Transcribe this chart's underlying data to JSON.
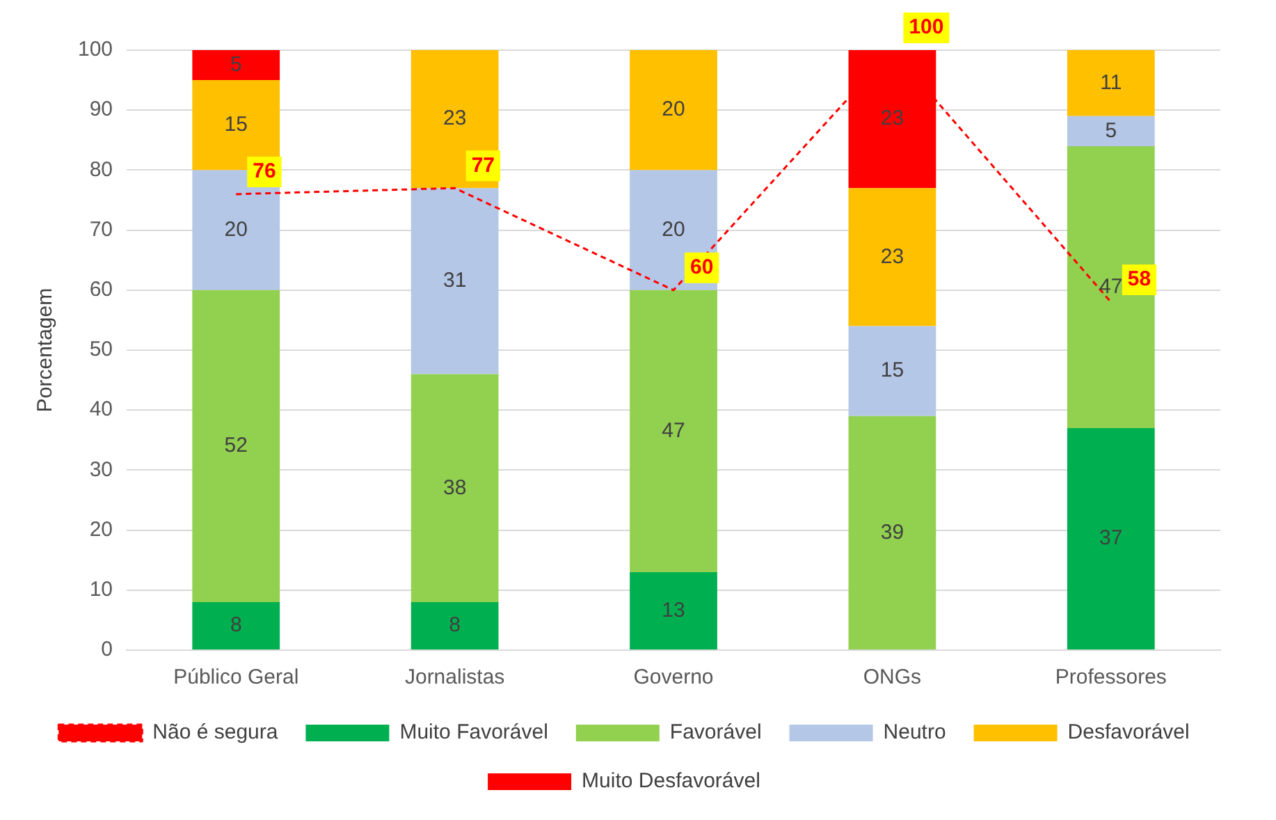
{
  "chart_data": {
    "type": "bar",
    "stacked": true,
    "ylabel": "Porcentagem",
    "categories": [
      "Público Geral",
      "Jornalistas",
      "Governo",
      "ONGs",
      "Professores"
    ],
    "series": [
      {
        "name": "Muito Favorável",
        "color": "#00b050",
        "values": [
          8,
          8,
          13,
          null,
          37
        ]
      },
      {
        "name": "Favorável",
        "color": "#92d050",
        "values": [
          52,
          38,
          47,
          39,
          47
        ]
      },
      {
        "name": "Neutro",
        "color": "#b4c7e7",
        "values": [
          20,
          31,
          20,
          15,
          5
        ]
      },
      {
        "name": "Desfavorável",
        "color": "#ffc000",
        "values": [
          15,
          23,
          20,
          23,
          11
        ]
      },
      {
        "name": "Muito Desfavorável",
        "color": "#ff0000",
        "values": [
          5,
          null,
          null,
          23,
          null
        ]
      },
      {
        "name": "Não é segura",
        "type": "line",
        "color": "#ff0000",
        "line_style": "dashed",
        "marker": "none",
        "values": [
          76,
          77,
          60,
          100,
          58
        ]
      }
    ],
    "ylim": [
      0,
      100
    ],
    "yticks": [
      0,
      10,
      20,
      30,
      40,
      50,
      60,
      70,
      80,
      90,
      100
    ],
    "grid": "y",
    "legend": "bottom",
    "data_labels": true
  }
}
